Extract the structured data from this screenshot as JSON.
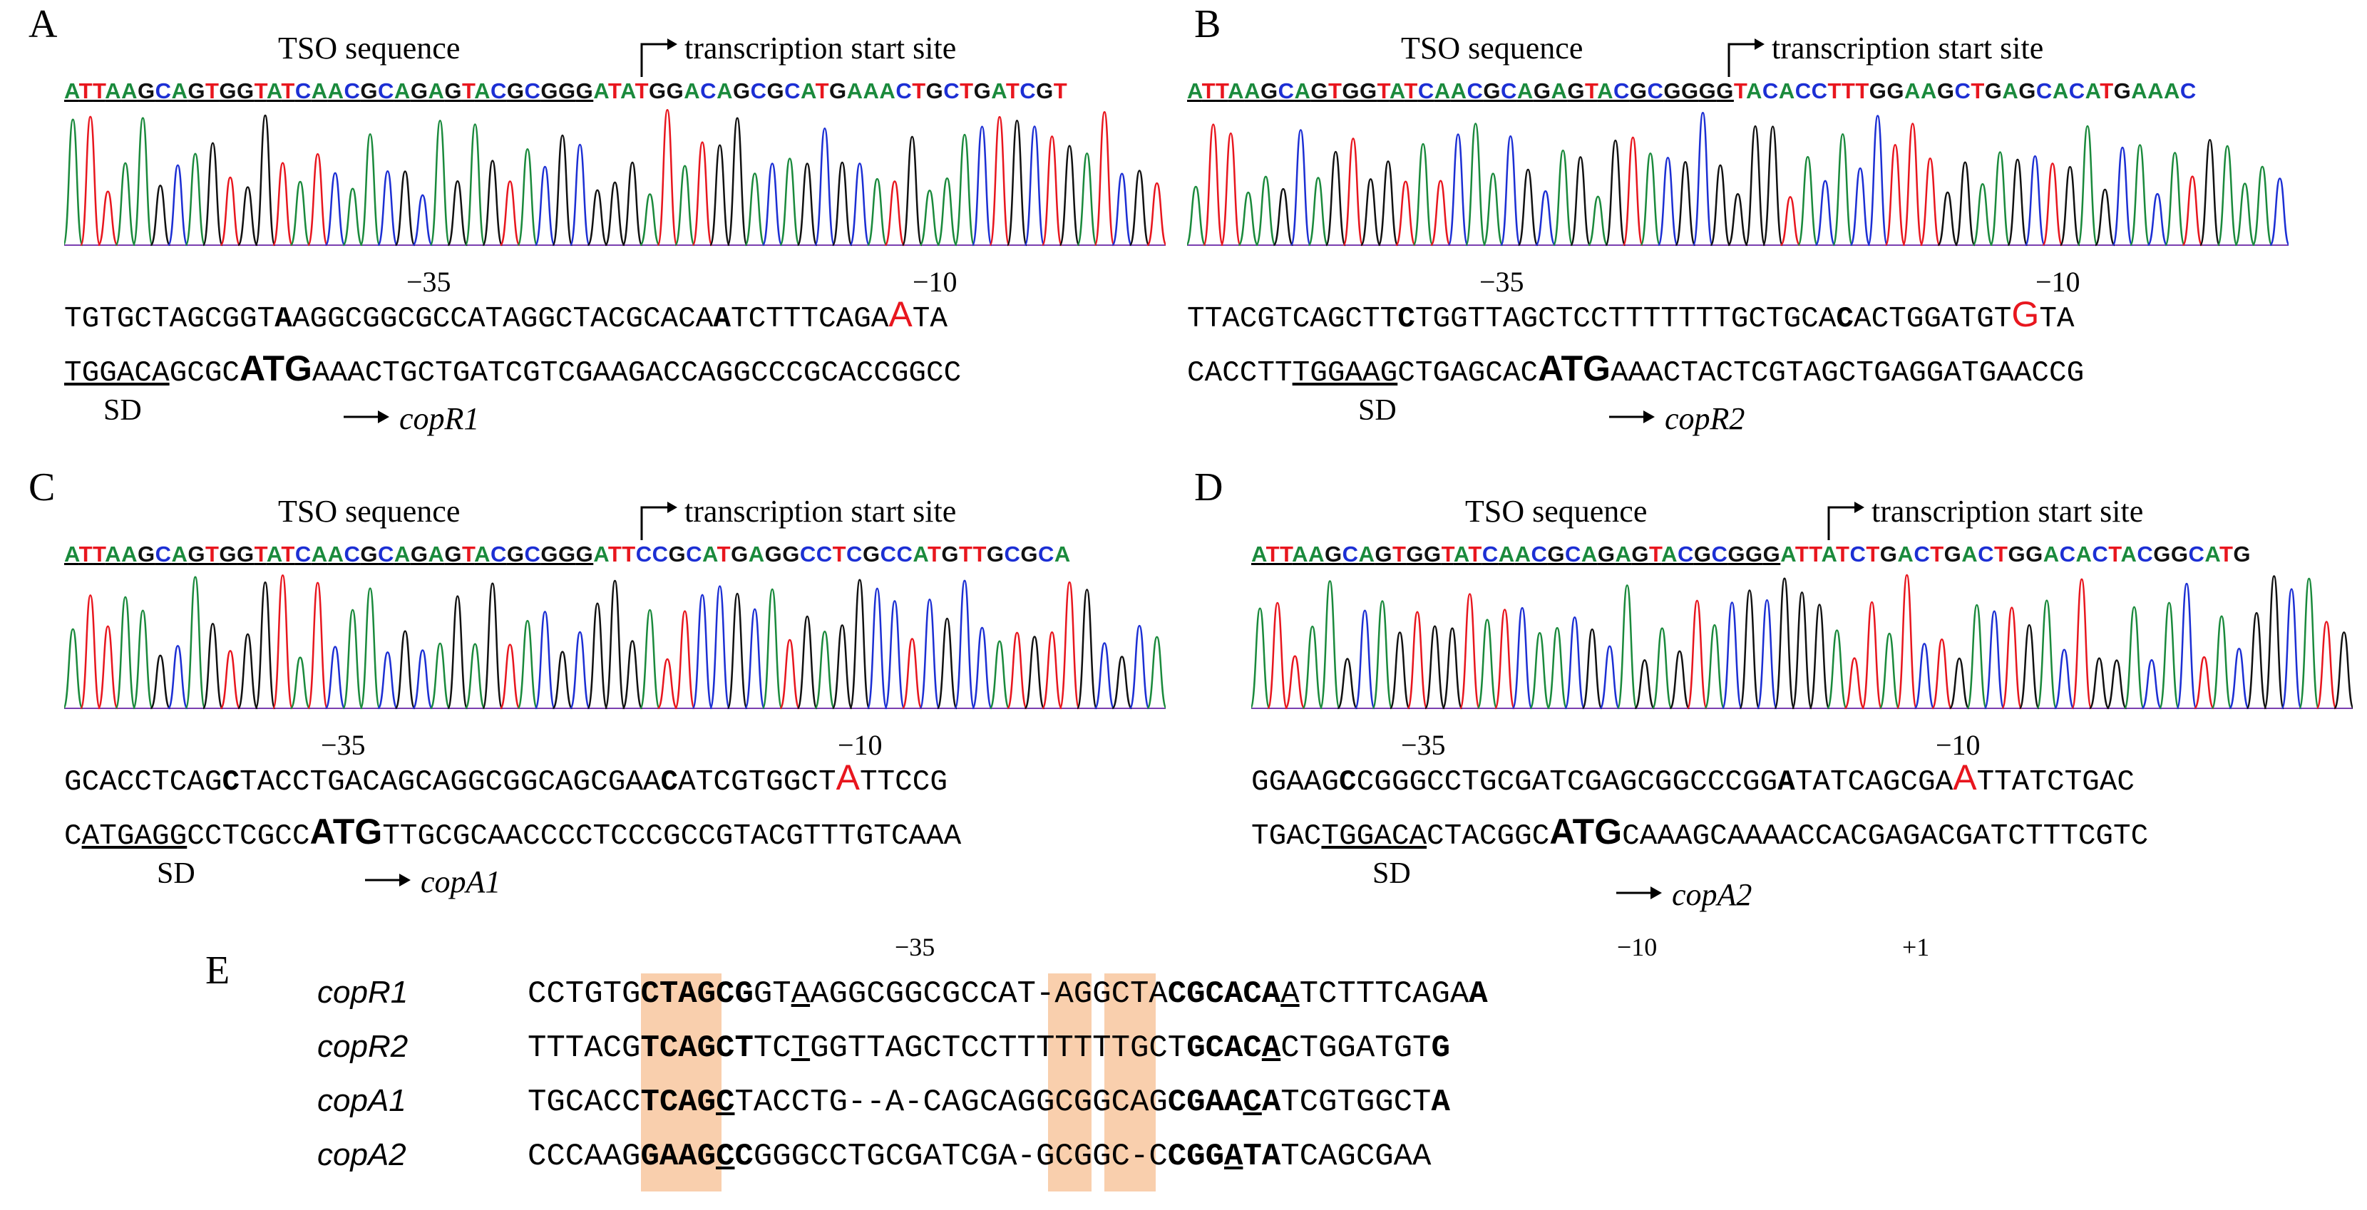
{
  "tso_label": "TSO sequence",
  "tss_label": "transcription start site",
  "sd_label": "SD",
  "m35": "−35",
  "m10": "−10",
  "p1": "+1",
  "colors": {
    "A": "#1a8a3c",
    "T": "#e8161e",
    "G": "#111111",
    "C": "#1c2fd4",
    "hl": "#f9cfad",
    "red": "#e8161e"
  },
  "panels": [
    {
      "label": "A",
      "tso_seq": "ATTAAGCAGTGGTATCAACGCAGAGTACGCGGG",
      "rest_seq": "ATATGGACAGCGCATGAAACTGCTGATCGT",
      "line1": [
        {
          "t": "TGTGCTAGCGGT"
        },
        {
          "t": "A",
          "b": 1
        },
        {
          "t": "AGGCGGCGCCATAGGCTACGCACA"
        },
        {
          "t": "A",
          "b": 1
        },
        {
          "t": "TCTTTCAGA"
        },
        {
          "t": "A",
          "r": 1
        },
        {
          "t": "TA"
        }
      ],
      "line2": [
        {
          "t": "TGGACA",
          "u": 1
        },
        {
          "t": "GCGC"
        },
        {
          "t": "ATG",
          "b": 1,
          "big": 1
        },
        {
          "t": "AAACTGCTGATCGTCGAAGACCAGGCCCGCACCGGCC"
        }
      ],
      "gene": "copR1"
    },
    {
      "label": "B",
      "tso_seq": "ATTAAGCAGTGGTATCAACGCAGAGTACGCGGGG",
      "rest_seq": "TACACCTTTGGAAGCTGAGCACATGAAAC",
      "line1": [
        {
          "t": "TTACGTCAGCTT"
        },
        {
          "t": "C",
          "b": 1
        },
        {
          "t": "TGGTTAGCTCCTTTTTTTGCTGCA"
        },
        {
          "t": "C",
          "b": 1
        },
        {
          "t": "ACTGGATGT"
        },
        {
          "t": "G",
          "r": 1
        },
        {
          "t": "TA"
        }
      ],
      "line2": [
        {
          "t": "CACCTT"
        },
        {
          "t": "TGGAAG",
          "u": 1
        },
        {
          "t": "CTGAGCAC"
        },
        {
          "t": "ATG",
          "b": 1,
          "big": 1
        },
        {
          "t": "AAACTACTCGTAGCTGAGGATGAACCG"
        }
      ],
      "gene": "copR2"
    },
    {
      "label": "C",
      "tso_seq": "ATTAAGCAGTGGTATCAACGCAGAGTACGCGGG",
      "rest_seq": "ATTCCGCATGAGGCCTCGCCATGTTGCGCA",
      "line1": [
        {
          "t": "GCACCTCAG"
        },
        {
          "t": "C",
          "b": 1
        },
        {
          "t": "TACCTGACAGCAGGCGGCAGCGAA"
        },
        {
          "t": "C",
          "b": 1
        },
        {
          "t": "ATCGTGGCT"
        },
        {
          "t": "A",
          "r": 1
        },
        {
          "t": "TTCCG"
        }
      ],
      "line2": [
        {
          "t": "C"
        },
        {
          "t": "ATGAGG",
          "u": 1
        },
        {
          "t": "CCTCGCC"
        },
        {
          "t": "ATG",
          "b": 1,
          "big": 1
        },
        {
          "t": "TTGCGCAACCCCTCCCGCCGTACGTTTGTCAAA"
        }
      ],
      "gene": "copA1"
    },
    {
      "label": "D",
      "tso_seq": "ATTAAGCAGTGGTATCAACGCAGAGTACGCGGG",
      "rest_seq": "ATTATCTGACTGACTGGACACTACGGCATG",
      "line1": [
        {
          "t": "GGAAG"
        },
        {
          "t": "C",
          "b": 1
        },
        {
          "t": "CGGGCCTGCGATCGAGCGGCCCGG"
        },
        {
          "t": "A",
          "b": 1
        },
        {
          "t": "TATCAGCGA"
        },
        {
          "t": "A",
          "r": 1
        },
        {
          "t": "TTATCTGAC"
        }
      ],
      "line2": [
        {
          "t": "TGAC"
        },
        {
          "t": "TGGACA",
          "u": 1
        },
        {
          "t": "CTACGGC"
        },
        {
          "t": "ATG",
          "b": 1,
          "big": 1
        },
        {
          "t": "CAAAGCAAAACCACGAGACGATCTTTCGTC"
        }
      ],
      "gene": "copA2"
    }
  ],
  "panel_e": {
    "label": "E",
    "rows": [
      {
        "name": "copR1",
        "segs": [
          {
            "t": "CCTGTG"
          },
          {
            "t": "CT",
            "b": 1
          },
          {
            "t": "AGC",
            "b": 1
          },
          {
            "t": "G",
            "b": 1
          },
          {
            "t": "GT"
          },
          {
            "t": "A",
            "u": 1
          },
          {
            "t": "AGGCGGCGCCAT-AGGCTA"
          },
          {
            "t": "CG",
            "b": 1
          },
          {
            "t": "CA",
            "b": 1
          },
          {
            "t": "CA",
            "b": 1
          },
          {
            "t": "A",
            "u": 1
          },
          {
            "t": "TCTTTCAGA"
          },
          {
            "t": "A",
            "b": 1
          }
        ]
      },
      {
        "name": "copR2",
        "segs": [
          {
            "t": "TTTACG"
          },
          {
            "t": "TC",
            "b": 1
          },
          {
            "t": "AGC",
            "b": 1
          },
          {
            "t": "T",
            "b": 1
          },
          {
            "t": "TC"
          },
          {
            "t": "T",
            "u": 1
          },
          {
            "t": "GGTTAGCTCCTTTTTTTGCT"
          },
          {
            "t": "G",
            "b": 1
          },
          {
            "t": "CA",
            "b": 1
          },
          {
            "t": "C",
            "b": 1
          },
          {
            "t": "A",
            "b": 1,
            "u": 1
          },
          {
            "t": "CTGGATGT"
          },
          {
            "t": "G",
            "b": 1
          }
        ]
      },
      {
        "name": "copA1",
        "segs": [
          {
            "t": "TGCACC"
          },
          {
            "t": "TC",
            "b": 1
          },
          {
            "t": "AG",
            "b": 1
          },
          {
            "t": "C",
            "b": 1,
            "u": 1
          },
          {
            "t": "TACCTG--A-CAGCAGGCGGCAG"
          },
          {
            "t": "CG",
            "b": 1
          },
          {
            "t": "AA",
            "b": 1
          },
          {
            "t": "C",
            "b": 1,
            "u": 1
          },
          {
            "t": "A",
            "b": 1
          },
          {
            "t": "TCGTGGCT"
          },
          {
            "t": "A",
            "b": 1
          }
        ]
      },
      {
        "name": "copA2",
        "segs": [
          {
            "t": "CCCAAG"
          },
          {
            "t": "GA",
            "b": 1
          },
          {
            "t": "AG",
            "b": 1
          },
          {
            "t": "C",
            "b": 1,
            "u": 1
          },
          {
            "t": "C",
            "b": 1
          },
          {
            "t": "GGGCCTGCGATCGA-GCGGC-C"
          },
          {
            "t": "CG",
            "b": 1
          },
          {
            "t": "G",
            "b": 1
          },
          {
            "t": "A",
            "b": 1,
            "u": 1
          },
          {
            "t": "T",
            "b": 1
          },
          {
            "t": "A",
            "b": 1
          },
          {
            "t": "TCAGCGAA"
          }
        ]
      }
    ]
  }
}
